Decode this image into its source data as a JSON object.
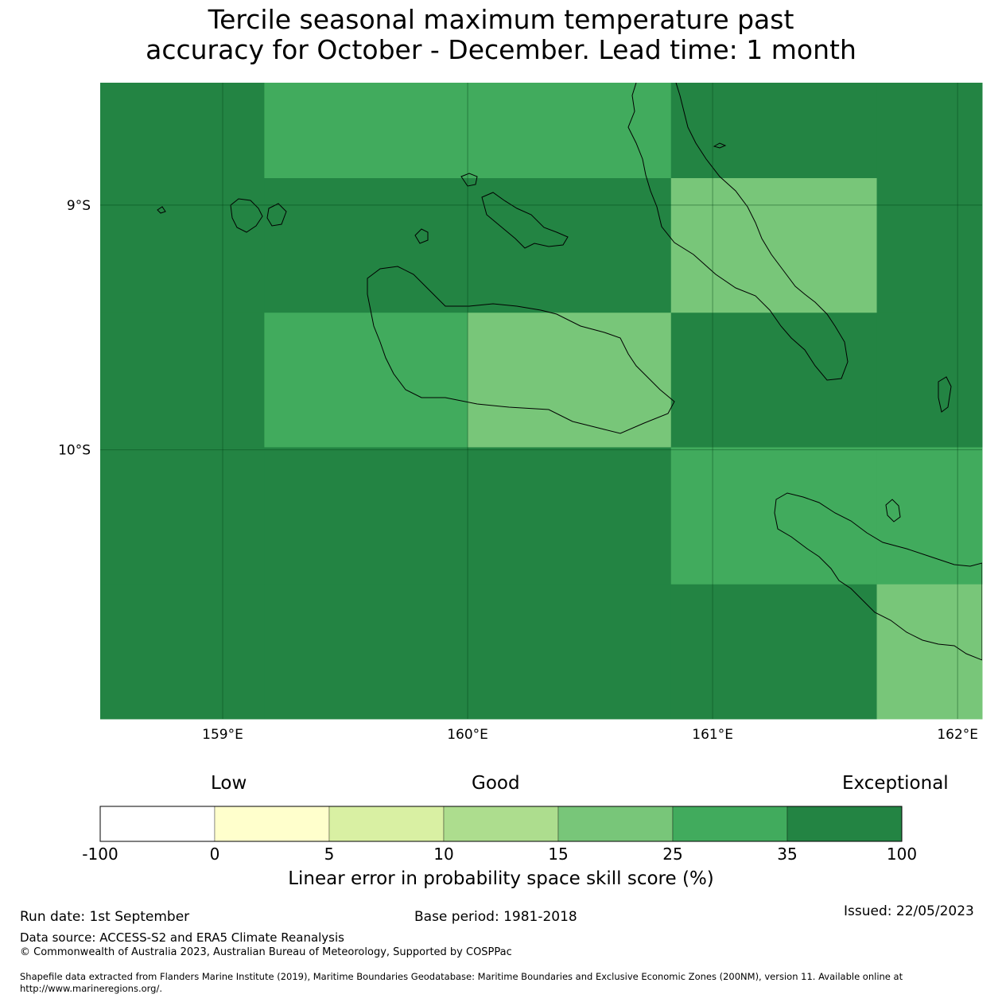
{
  "title_line1": "Tercile seasonal maximum temperature past",
  "title_line2": "accuracy for October - December. Lead time: 1 month",
  "map": {
    "lat_labels": [
      "9°S",
      "10°S"
    ],
    "lon_labels": [
      "159°E",
      "160°E",
      "161°E",
      "162°E"
    ],
    "grid": {
      "lon_edges": [
        158.5,
        159.17,
        160.0,
        160.83,
        161.67,
        162.1
      ],
      "lat_edges": [
        -8.5,
        -8.89,
        -9.44,
        -9.99,
        -10.55,
        -11.1
      ],
      "skill_class": [
        [
          6,
          5,
          5,
          6,
          6
        ],
        [
          6,
          6,
          6,
          4,
          6
        ],
        [
          6,
          5,
          4,
          6,
          6
        ],
        [
          6,
          6,
          6,
          5,
          5
        ],
        [
          6,
          6,
          6,
          6,
          4
        ]
      ]
    }
  },
  "colorbar": {
    "words": [
      "Low",
      "Good",
      "Exceptional"
    ],
    "ticks": [
      "-100",
      "0",
      "5",
      "10",
      "15",
      "25",
      "35",
      "100"
    ],
    "colors": [
      "#ffffff",
      "#ffffcc",
      "#d9f0a3",
      "#addd8e",
      "#78c679",
      "#41ab5d",
      "#238443"
    ],
    "label": "Linear error in probability space skill score (%)"
  },
  "footer": {
    "run_date": "Run date: 1st September",
    "base_period": "Base period: 1981-2018",
    "issued": "Issued: 22/05/2023",
    "data_source": "Data source: ACCESS-S2 and ERA5 Climate Reanalysis",
    "copyright": "© Commonwealth of Australia 2023, Australian Bureau of Meteorology, Supported by COSPPac",
    "shapefile_line1": "Shapefile data extracted from Flanders Marine Institute (2019), Maritime Boundaries Geodatabase: Maritime Boundaries and Exclusive Economic Zones (200NM), version 11. Available online at",
    "shapefile_line2": "http://www.marineregions.org/."
  }
}
